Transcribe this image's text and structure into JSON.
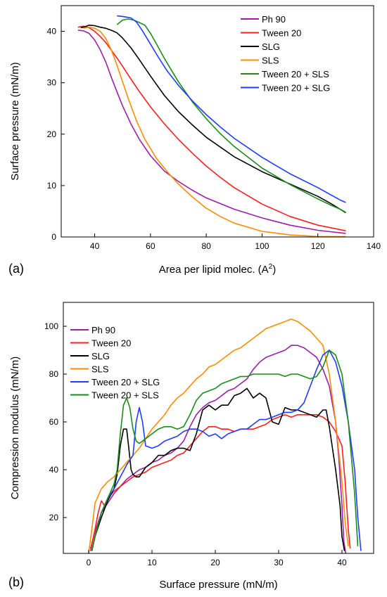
{
  "chart_data": [
    {
      "type": "line",
      "panel_label": "(a)",
      "xlabel": "Area per lipid molec. (A",
      "xlabel_sup": "2",
      "xlabel_tail": ")",
      "ylabel": "Surface pressure (mN/m)",
      "xlim": [
        28,
        140
      ],
      "ylim": [
        0,
        45
      ],
      "xticks": [
        40,
        60,
        80,
        100,
        120,
        140
      ],
      "yticks": [
        0,
        10,
        20,
        30,
        40
      ],
      "legend_position": "top-right",
      "series": [
        {
          "name": "Ph 90",
          "color": "#9b1fa8",
          "x": [
            34,
            36,
            38,
            40,
            42,
            44,
            46,
            48,
            50,
            53,
            56,
            60,
            65,
            70,
            75,
            80,
            90,
            100,
            110,
            120,
            130
          ],
          "y": [
            40.2,
            40.1,
            39.6,
            38.3,
            36.4,
            34,
            31,
            28.2,
            25.5,
            22,
            19,
            15.8,
            12.8,
            10.8,
            9.1,
            7.6,
            5.4,
            3.7,
            2.3,
            1.3,
            0.7
          ]
        },
        {
          "name": "Tween 20",
          "color": "#ff1f1f",
          "x": [
            34,
            36,
            38,
            40,
            42,
            44,
            46,
            48,
            50,
            53,
            56,
            60,
            65,
            70,
            75,
            80,
            85,
            90,
            100,
            110,
            120,
            130
          ],
          "y": [
            40.8,
            41,
            40.7,
            40,
            39,
            37.8,
            36.3,
            34.8,
            33.2,
            30.7,
            28.3,
            25.3,
            22,
            19,
            16.3,
            13.8,
            11.6,
            9.6,
            6.4,
            4,
            2.3,
            1.2
          ]
        },
        {
          "name": "SLG",
          "color": "#000000",
          "x": [
            35,
            36,
            38,
            40,
            42,
            44,
            46,
            48,
            50,
            53,
            56,
            60,
            65,
            70,
            75,
            80,
            90,
            100,
            110,
            120,
            125,
            130
          ],
          "y": [
            40.7,
            40.8,
            41.2,
            41.1,
            40.8,
            40.6,
            40.2,
            39.7,
            38.7,
            36.8,
            34.5,
            31.3,
            27.5,
            24.4,
            21.8,
            19.4,
            15.6,
            12.7,
            10.3,
            7.9,
            6.4,
            4.7
          ]
        },
        {
          "name": "SLS",
          "color": "#ff8c00",
          "x": [
            36,
            38,
            40,
            42,
            44,
            46,
            48,
            50,
            52,
            55,
            58,
            62,
            66,
            70,
            75,
            80,
            85,
            90,
            100,
            110,
            120,
            130
          ],
          "y": [
            40.6,
            40.8,
            40.6,
            40,
            38.6,
            36.3,
            33.4,
            30.2,
            27,
            22.6,
            19,
            15.4,
            12.7,
            10.3,
            7.8,
            5.6,
            4,
            2.7,
            1.1,
            0.4,
            0.1,
            0.05
          ]
        },
        {
          "name": "Tween 20 + SLS",
          "color": "#1a8c1a",
          "x": [
            48,
            50,
            52,
            54,
            56,
            58,
            60,
            62,
            65,
            70,
            75,
            80,
            85,
            90,
            100,
            110,
            120,
            125,
            128,
            130
          ],
          "y": [
            41.3,
            42.2,
            42.4,
            42.2,
            41.7,
            41.2,
            39.6,
            37.7,
            34.7,
            30.2,
            26.3,
            23,
            20.1,
            17.6,
            13.4,
            10.2,
            7.4,
            6.1,
            5.4,
            4.8
          ]
        },
        {
          "name": "Tween 20 + SLG",
          "color": "#1f3cff",
          "x": [
            48,
            50,
            51,
            53,
            55,
            57,
            60,
            63,
            66,
            70,
            75,
            80,
            85,
            90,
            100,
            110,
            120,
            125,
            128,
            130
          ],
          "y": [
            43,
            42.9,
            42.8,
            42.6,
            41.8,
            40.2,
            37.5,
            34.8,
            32.3,
            29.5,
            26.5,
            23.8,
            21.4,
            19.2,
            15.5,
            12.3,
            9.6,
            8.1,
            7.2,
            6.7
          ]
        }
      ]
    },
    {
      "type": "line",
      "panel_label": "(b)",
      "xlabel": "Surface pressure (mN/m)",
      "ylabel": "Compression modulus (mN/m)",
      "xlim": [
        -4,
        45
      ],
      "ylim": [
        5,
        110
      ],
      "xticks": [
        0,
        10,
        20,
        30,
        40
      ],
      "yticks": [
        20,
        40,
        60,
        80,
        100
      ],
      "legend_position": "top-left",
      "series": [
        {
          "name": "Ph 90",
          "color": "#9b1fa8",
          "x": [
            0.3,
            0.6,
            1,
            1.5,
            2,
            3,
            4,
            5,
            6,
            7,
            8,
            9,
            10,
            11,
            12,
            13,
            14,
            15,
            16,
            17,
            18,
            19,
            20,
            21,
            22,
            23,
            24,
            25,
            26,
            27,
            28,
            29,
            30,
            31,
            32,
            33,
            34,
            35,
            36,
            37,
            38,
            39,
            39.5,
            40,
            40.3,
            40.6
          ],
          "y": [
            7,
            10,
            14,
            18,
            22,
            26,
            30,
            33,
            36,
            38,
            40,
            41,
            43,
            44,
            46,
            47,
            49,
            52,
            58,
            63,
            66,
            68,
            69,
            71,
            73,
            74,
            76,
            78,
            82,
            85,
            87,
            88,
            89,
            90,
            92,
            92,
            91,
            89,
            87,
            82,
            75,
            60,
            45,
            25,
            10,
            5
          ]
        },
        {
          "name": "Tween 20",
          "color": "#ff1f1f",
          "x": [
            0.3,
            0.6,
            1,
            1.5,
            2,
            2.5,
            3,
            4,
            5,
            6,
            7,
            8,
            9,
            10,
            11,
            12,
            13,
            14,
            15,
            16,
            17,
            18,
            19,
            20,
            21,
            22,
            23,
            24,
            25,
            26,
            27,
            28,
            29,
            30,
            31,
            32,
            33,
            34,
            35,
            36,
            37,
            38,
            39,
            40,
            40.5,
            41,
            41.3
          ],
          "y": [
            6,
            10,
            15,
            22,
            27,
            25,
            28,
            31,
            33,
            35,
            37,
            38,
            39,
            41,
            42,
            43,
            44,
            46,
            47,
            50,
            53,
            56,
            58,
            58,
            57,
            57,
            56,
            57,
            57,
            57,
            58,
            59,
            61,
            62,
            63,
            62,
            63,
            63,
            63,
            63,
            62,
            60,
            56,
            50,
            35,
            15,
            7
          ]
        },
        {
          "name": "SLG",
          "color": "#000000",
          "x": [
            0.5,
            1,
            2,
            3,
            4,
            4.5,
            5,
            5.5,
            6,
            6.3,
            6.7,
            7,
            7.5,
            8,
            9,
            10,
            11,
            12,
            13,
            14,
            15,
            16,
            17,
            18,
            19,
            20,
            21,
            22,
            23,
            24,
            25,
            26,
            27,
            28,
            29,
            30,
            31,
            32,
            33,
            34,
            35,
            36,
            37,
            37.5,
            38,
            39,
            39.7,
            40,
            40.4
          ],
          "y": [
            6,
            12,
            20,
            27,
            32,
            38,
            50,
            57,
            57,
            50,
            40,
            38,
            37,
            37,
            41,
            43,
            46,
            46,
            48,
            49,
            49,
            48,
            55,
            65,
            67,
            65,
            67,
            67,
            71,
            72,
            74,
            70,
            72,
            70,
            60,
            59,
            66,
            65,
            65,
            64,
            63,
            62,
            65,
            65,
            58,
            40,
            25,
            12,
            6
          ]
        },
        {
          "name": "SLS",
          "color": "#ff8c00",
          "x": [
            0,
            0.5,
            1,
            2,
            3,
            4,
            5,
            6,
            7,
            8,
            9,
            10,
            11,
            12,
            13,
            14,
            15,
            16,
            17,
            18,
            19,
            20,
            21,
            22,
            23,
            24,
            25,
            26,
            27,
            28,
            29,
            30,
            31,
            32,
            33,
            34,
            35,
            36,
            37,
            38,
            39,
            40,
            40.5,
            41
          ],
          "y": [
            5,
            15,
            26,
            32,
            35,
            37,
            40,
            43,
            46,
            49,
            53,
            57,
            60,
            63,
            67,
            70,
            72,
            75,
            78,
            80,
            83,
            84,
            86,
            88,
            90,
            91,
            93,
            95,
            97,
            99,
            100,
            101,
            102,
            103,
            102,
            100,
            98,
            95,
            92,
            80,
            60,
            35,
            18,
            8
          ]
        },
        {
          "name": "Tween 20 + SLG",
          "color": "#1f3cff",
          "x": [
            0.5,
            1,
            2,
            3,
            4,
            5,
            6,
            7,
            7.5,
            8,
            8.5,
            9,
            10,
            11,
            12,
            13,
            14,
            15,
            16,
            17,
            18,
            19,
            20,
            21,
            22,
            23,
            24,
            25,
            26,
            27,
            28,
            29,
            30,
            31,
            32,
            33,
            34,
            35,
            36,
            37,
            38,
            39,
            40,
            41,
            42,
            42.5,
            43
          ],
          "y": [
            6,
            12,
            22,
            28,
            32,
            37,
            42,
            46,
            60,
            66,
            60,
            50,
            49,
            50,
            52,
            53,
            54,
            56,
            57,
            57,
            56,
            54,
            55,
            53,
            55,
            56,
            57,
            57,
            59,
            61,
            61,
            62,
            63,
            64,
            64,
            65,
            68,
            75,
            82,
            88,
            90,
            85,
            75,
            60,
            40,
            20,
            6
          ]
        },
        {
          "name": "Tween 20 + SLS",
          "color": "#1a8c1a",
          "x": [
            0.5,
            1,
            2,
            3,
            4,
            4.5,
            5,
            5.5,
            6,
            6.5,
            7,
            7.5,
            8,
            9,
            10,
            11,
            12,
            13,
            14,
            15,
            16,
            17,
            18,
            19,
            20,
            21,
            22,
            23,
            24,
            25,
            26,
            27,
            28,
            29,
            30,
            31,
            32,
            33,
            34,
            35,
            36,
            37,
            38,
            39,
            40,
            41,
            42,
            42.5
          ],
          "y": [
            6,
            12,
            22,
            28,
            34,
            40,
            55,
            67,
            70,
            66,
            57,
            52,
            51,
            53,
            55,
            57,
            58,
            58,
            57,
            58,
            63,
            69,
            72,
            73,
            74,
            76,
            77,
            78,
            79,
            79,
            80,
            80,
            80,
            80,
            80,
            79,
            80,
            80,
            79,
            78,
            79,
            83,
            90,
            88,
            80,
            60,
            30,
            8
          ]
        }
      ]
    }
  ]
}
